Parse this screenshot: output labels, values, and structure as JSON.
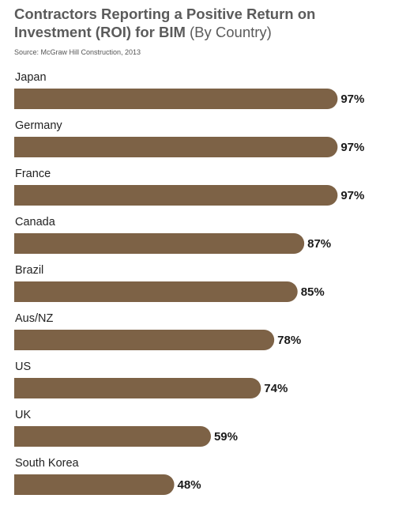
{
  "chart_data": {
    "type": "bar",
    "orientation": "horizontal",
    "title": "Contractors Reporting a Positive Return on Investment (ROI) for BIM",
    "subtitle": "(By Country)",
    "source": "Source: McGraw Hill Construction, 2013",
    "categories": [
      "Japan",
      "Germany",
      "France",
      "Canada",
      "Brazil",
      "Aus/NZ",
      "US",
      "UK",
      "South Korea"
    ],
    "values": [
      97,
      97,
      97,
      87,
      85,
      78,
      74,
      59,
      48
    ],
    "value_labels": [
      "97%",
      "97%",
      "97%",
      "87%",
      "85%",
      "78%",
      "74%",
      "59%",
      "48%"
    ],
    "color": "#7d6246",
    "xlim": [
      0,
      100
    ]
  }
}
